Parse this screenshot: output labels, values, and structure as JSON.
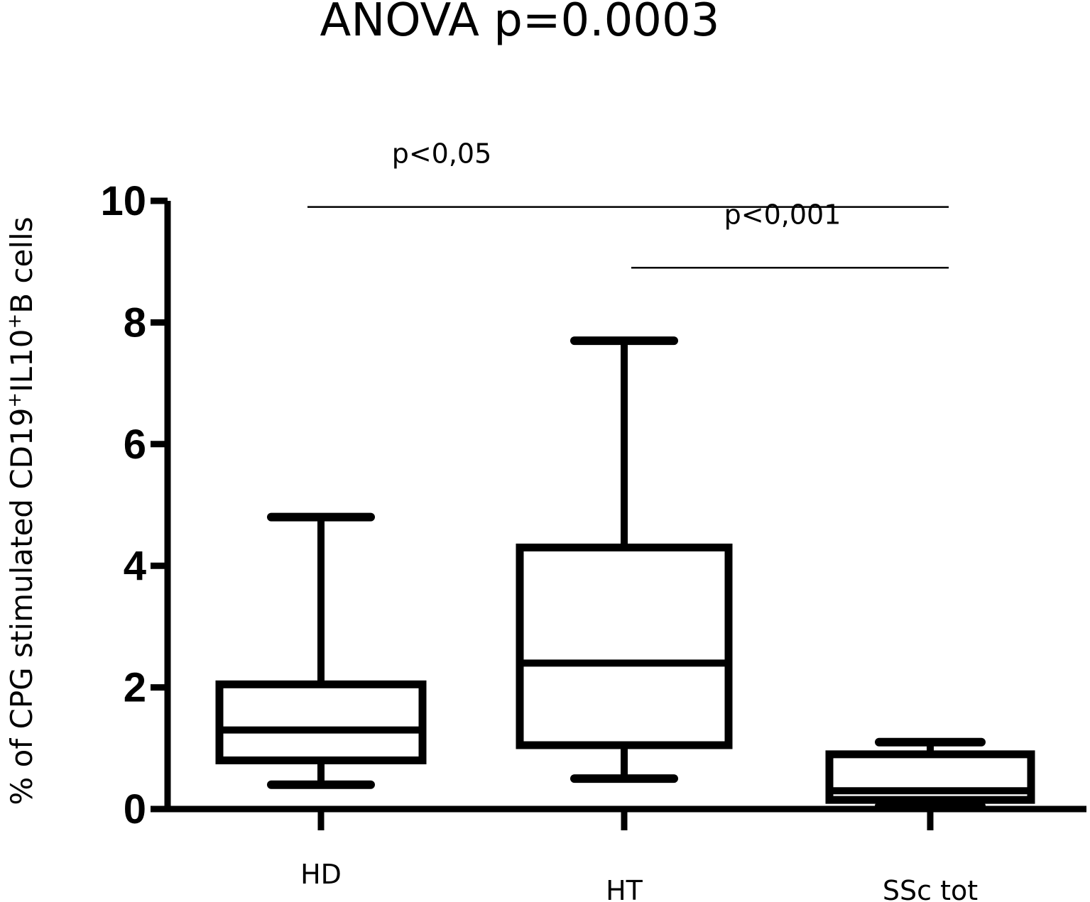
{
  "chart_data": {
    "type": "boxplot",
    "title": "ANOVA p=0.0003",
    "ylabel_parts": {
      "pre": "% of CPG stimulated CD19",
      "sup1": "+",
      "mid": "IL10",
      "sup2": "+",
      "post": "B cells"
    },
    "ylim": [
      0,
      10
    ],
    "yticks": [
      "0",
      "2",
      "4",
      "6",
      "8",
      "10"
    ],
    "categories": [
      "HD",
      "HT",
      "SSc tot"
    ],
    "boxes": [
      {
        "name": "HD",
        "whisker_low": 0.4,
        "q1": 0.8,
        "median": 1.3,
        "q3": 2.05,
        "whisker_high": 4.8
      },
      {
        "name": "HT",
        "whisker_low": 0.5,
        "q1": 1.05,
        "median": 2.4,
        "q3": 4.3,
        "whisker_high": 7.7
      },
      {
        "name": "SSc tot",
        "whisker_low": 0.05,
        "q1": 0.15,
        "median": 0.3,
        "q3": 0.9,
        "whisker_high": 1.1
      }
    ],
    "significance": [
      {
        "label": "p<0,05",
        "from": "HD",
        "to": "SSc tot",
        "y": 9.9
      },
      {
        "label": "p<0,001",
        "from": "HT",
        "to": "SSc tot",
        "y": 8.9
      }
    ]
  }
}
